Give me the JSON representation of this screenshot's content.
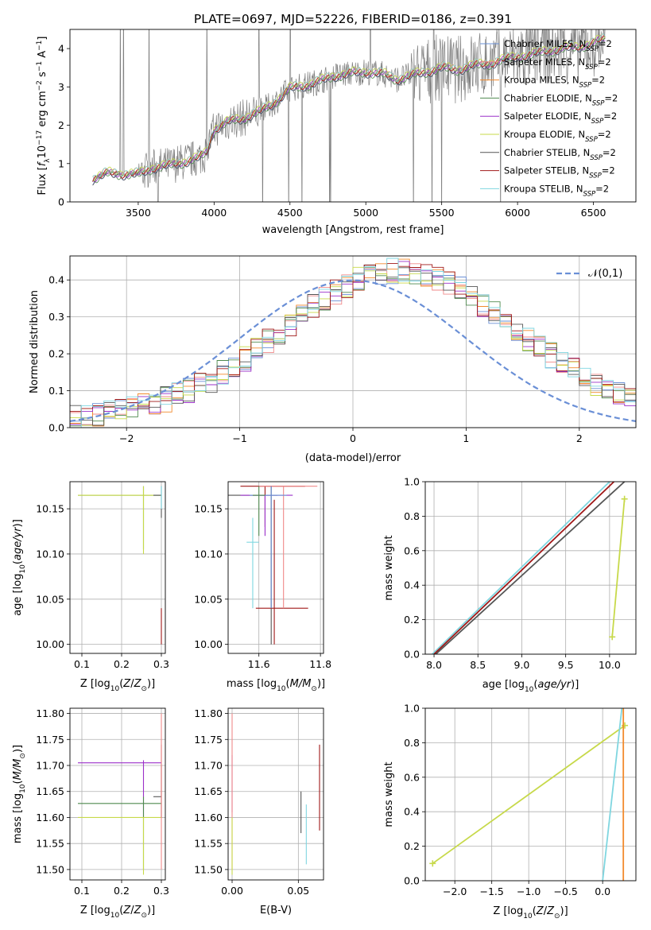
{
  "figure_title": "PLATE=0697, MJD=52226, FIBERID=0186, z=0.391",
  "chart_data": [
    {
      "id": "spectrum",
      "type": "line",
      "title": "PLATE=0697, MJD=52226, FIBERID=0186, z=0.391",
      "xlabel": "wavelength [Angstrom, rest frame]",
      "ylabel": "Flux [f_λ 10^-17 erg cm^-2 s^-1 A^-1]",
      "xlim": [
        3050,
        6780
      ],
      "ylim": [
        0,
        4.5
      ],
      "xticks": [
        3500,
        4000,
        4500,
        5000,
        5500,
        6000,
        6500
      ],
      "yticks": [
        0,
        1,
        2,
        3,
        4
      ],
      "legend_position": "upper-right",
      "series": [
        {
          "name": "Chabrier MILES, N_SSP=2",
          "color": "#6a8fd6"
        },
        {
          "name": "Salpeter MILES, N_SSP=2",
          "color": "#f08a8a"
        },
        {
          "name": "Kroupa MILES, N_SSP=2",
          "color": "#f28a2c"
        },
        {
          "name": "Chabrier ELODIE, N_SSP=2",
          "color": "#4f8a4f"
        },
        {
          "name": "Salpeter ELODIE, N_SSP=2",
          "color": "#9b30c9"
        },
        {
          "name": "Kroupa ELODIE, N_SSP=2",
          "color": "#c7d94a"
        },
        {
          "name": "Chabrier STELIB, N_SSP=2",
          "color": "#555555"
        },
        {
          "name": "Salpeter STELIB, N_SSP=2",
          "color": "#a01818"
        },
        {
          "name": "Kroupa STELIB, N_SSP=2",
          "color": "#7fd6e0"
        }
      ],
      "data_color": "#808080",
      "model_shape": {
        "x": [
          3200,
          3300,
          3500,
          3600,
          3700,
          3800,
          3900,
          3950,
          4000,
          4100,
          4200,
          4300,
          4400,
          4500,
          4600,
          4700,
          4800,
          4900,
          5000,
          5100,
          5200,
          5300,
          5400,
          5500,
          5600,
          5700,
          5800,
          5900,
          6000,
          6100,
          6200,
          6300,
          6400,
          6500,
          6580
        ],
        "y": [
          0.6,
          0.75,
          0.72,
          0.9,
          0.95,
          1.05,
          1.15,
          1.3,
          1.9,
          2.1,
          2.2,
          2.35,
          2.6,
          2.95,
          3.05,
          3.15,
          3.3,
          3.35,
          3.4,
          3.35,
          3.2,
          3.3,
          3.4,
          3.5,
          3.45,
          3.55,
          3.6,
          3.7,
          3.8,
          3.85,
          3.95,
          4.0,
          4.05,
          4.15,
          4.25
        ]
      }
    },
    {
      "id": "residuals",
      "type": "line",
      "xlabel": "(data-model)/error",
      "ylabel": "Normed distribution",
      "xlim": [
        -2.5,
        2.5
      ],
      "ylim": [
        0,
        0.465
      ],
      "xticks": [
        -2,
        -1,
        0,
        1,
        2
      ],
      "yticks": [
        0.0,
        0.1,
        0.2,
        0.3,
        0.4
      ],
      "legend": [
        {
          "name": "𝒩(0,1)",
          "color": "#6a8fd6",
          "style": "dashed"
        }
      ],
      "gaussian": {
        "mean": 0,
        "sigma": 1
      },
      "histogram_bins": {
        "start": -2.5,
        "width": 0.1,
        "count": 50
      },
      "histogram_shape": {
        "mean": 0.42,
        "sigma": 1.02,
        "peak": 0.4
      }
    },
    {
      "id": "age-vs-Z",
      "type": "scatter",
      "xlabel": "Z [log10(Z/Z_sun)]",
      "ylabel": "age  [log10(age/yr)]",
      "xlim": [
        0.07,
        0.31
      ],
      "ylim": [
        9.99,
        10.18
      ],
      "xticks": [
        0.1,
        0.2,
        0.3
      ],
      "yticks": [
        10.0,
        10.05,
        10.1,
        10.15
      ],
      "points": [
        {
          "x": 0.255,
          "y": 10.165,
          "x0": 0.09,
          "x1": 0.3,
          "y0": 10.105,
          "y1": 10.175,
          "color": "#4f8a4f"
        },
        {
          "x": 0.255,
          "y": 10.165,
          "x0": 0.09,
          "x1": 0.3,
          "y0": 10.1,
          "y1": 10.175,
          "color": "#c7d94a"
        },
        {
          "x": 0.3,
          "y": 10.165,
          "x0": 0.28,
          "x1": 0.3,
          "y0": 10.14,
          "y1": 10.175,
          "color": "#555555"
        },
        {
          "x": 0.3,
          "y": 10.02,
          "x0": 0.3,
          "x1": 0.3,
          "y0": 10.0,
          "y1": 10.04,
          "color": "#a01818"
        },
        {
          "x": 0.3,
          "y": 10.16,
          "x0": 0.3,
          "x1": 0.3,
          "y0": 10.15,
          "y1": 10.175,
          "color": "#7fd6e0"
        }
      ]
    },
    {
      "id": "age-vs-mass",
      "type": "scatter",
      "xlabel": "mass [log10(M/M_sun)]",
      "ylabel": "",
      "xlim": [
        11.5,
        11.81
      ],
      "ylim": [
        9.99,
        10.18
      ],
      "xticks": [
        11.6,
        11.8
      ],
      "yticks": [
        10.0,
        10.05,
        10.1,
        10.15
      ],
      "points": [
        {
          "x": 11.64,
          "y": 10.165,
          "x0": 11.5,
          "x1": 11.66,
          "y0": 10.0,
          "y1": 10.175,
          "color": "#555555"
        },
        {
          "x": 11.62,
          "y": 10.175,
          "x0": 11.54,
          "x1": 11.75,
          "y0": 10.13,
          "y1": 10.175,
          "color": "#a01818"
        },
        {
          "x": 11.65,
          "y": 10.04,
          "x0": 11.59,
          "x1": 11.76,
          "y0": 10.0,
          "y1": 10.16,
          "color": "#a01818"
        },
        {
          "x": 11.62,
          "y": 10.165,
          "x0": 11.54,
          "x1": 11.71,
          "y0": 10.12,
          "y1": 10.165,
          "color": "#9b30c9"
        },
        {
          "x": 11.68,
          "y": 10.175,
          "x0": 11.6,
          "x1": 11.79,
          "y0": 10.04,
          "y1": 10.175,
          "color": "#f08a8a"
        },
        {
          "x": 11.64,
          "y": 10.165,
          "x0": 11.57,
          "x1": 11.69,
          "y0": 10.04,
          "y1": 10.175,
          "color": "#6a8fd6"
        },
        {
          "x": 11.58,
          "y": 10.113,
          "x0": 11.56,
          "x1": 11.6,
          "y0": 10.04,
          "y1": 10.14,
          "color": "#7fd6e0"
        },
        {
          "x": 11.6,
          "y": 10.165,
          "x0": 11.58,
          "x1": 11.62,
          "y0": 10.12,
          "y1": 10.175,
          "color": "#4f8a4f"
        }
      ]
    },
    {
      "id": "massweight-vs-age",
      "type": "line",
      "xlabel": "age  [log10(age/yr)]",
      "ylabel": "mass weight",
      "xlim": [
        7.9,
        10.3
      ],
      "ylim": [
        0,
        1.0
      ],
      "xticks": [
        8.0,
        8.5,
        9.0,
        9.5,
        10.0
      ],
      "yticks": [
        0.0,
        0.2,
        0.4,
        0.6,
        0.8,
        1.0
      ],
      "series": [
        {
          "x": [
            7.98,
            10.0
          ],
          "y": [
            0,
            1.0
          ],
          "color": "#7fd6e0"
        },
        {
          "x": [
            8.0,
            10.05
          ],
          "y": [
            0,
            1.0
          ],
          "color": "#a01818"
        },
        {
          "x": [
            8.02,
            10.17
          ],
          "y": [
            0,
            1.0
          ],
          "color": "#555555"
        },
        {
          "x": [
            10.03,
            10.17
          ],
          "y": [
            0.1,
            0.9
          ],
          "color": "#c7d94a",
          "marker": "+"
        }
      ]
    },
    {
      "id": "mass-vs-Z",
      "type": "scatter",
      "xlabel": "Z [log10(Z/Z_sun)]",
      "ylabel": "mass [log10(M/M_sun)]",
      "xlim": [
        0.07,
        0.31
      ],
      "ylim": [
        11.48,
        11.81
      ],
      "xticks": [
        0.1,
        0.2,
        0.3
      ],
      "yticks": [
        11.5,
        11.55,
        11.6,
        11.65,
        11.7,
        11.75,
        11.8
      ],
      "points": [
        {
          "x": 0.255,
          "y": 11.705,
          "x0": 0.09,
          "x1": 0.3,
          "y0": 11.6,
          "y1": 11.71,
          "color": "#9b30c9"
        },
        {
          "x": 0.255,
          "y": 11.627,
          "x0": 0.09,
          "x1": 0.3,
          "y0": 11.5,
          "y1": 11.64,
          "color": "#4f8a4f"
        },
        {
          "x": 0.255,
          "y": 11.6,
          "x0": 0.09,
          "x1": 0.3,
          "y0": 11.49,
          "y1": 11.6,
          "color": "#c7d94a"
        },
        {
          "x": 0.3,
          "y": 11.64,
          "x0": 0.28,
          "x1": 0.3,
          "y0": 11.6,
          "y1": 11.7,
          "color": "#555555"
        },
        {
          "x": 0.3,
          "y": 11.7,
          "x0": 0.3,
          "x1": 0.3,
          "y0": 11.6,
          "y1": 11.74,
          "color": "#a01818"
        },
        {
          "x": 0.3,
          "y": 11.7,
          "x0": 0.3,
          "x1": 0.3,
          "y0": 11.5,
          "y1": 11.8,
          "color": "#f08a8a"
        }
      ]
    },
    {
      "id": "mass-vs-EBV",
      "type": "scatter",
      "xlabel": "E(B-V)",
      "ylabel": "",
      "xlim": [
        -0.003,
        0.069
      ],
      "ylim": [
        11.48,
        11.81
      ],
      "xticks": [
        0.0,
        0.05
      ],
      "yticks": [
        11.5,
        11.55,
        11.6,
        11.65,
        11.7,
        11.75,
        11.8
      ],
      "points": [
        {
          "x": 0.0,
          "y": 11.7,
          "x0": 0.0,
          "x1": 0.0,
          "y0": 11.61,
          "y1": 11.72,
          "color": "#9b30c9"
        },
        {
          "x": 0.0,
          "y": 11.7,
          "x0": 0.0,
          "x1": 0.0,
          "y0": 11.5,
          "y1": 11.8,
          "color": "#f08a8a"
        },
        {
          "x": 0.0,
          "y": 11.55,
          "x0": 0.0,
          "x1": 0.0,
          "y0": 11.49,
          "y1": 11.6,
          "color": "#c7d94a"
        },
        {
          "x": 0.052,
          "y": 11.61,
          "x0": 0.052,
          "x1": 0.052,
          "y0": 11.57,
          "y1": 11.65,
          "color": "#555555"
        },
        {
          "x": 0.056,
          "y": 11.56,
          "x0": 0.056,
          "x1": 0.056,
          "y0": 11.51,
          "y1": 11.625,
          "color": "#7fd6e0"
        },
        {
          "x": 0.066,
          "y": 11.65,
          "x0": 0.066,
          "x1": 0.066,
          "y0": 11.575,
          "y1": 11.74,
          "color": "#a01818"
        }
      ]
    },
    {
      "id": "massweight-vs-Z",
      "type": "line",
      "xlabel": "Z [log10(Z/Z_sun)]",
      "ylabel": "mass weight",
      "xlim": [
        -2.4,
        0.45
      ],
      "ylim": [
        0,
        1.0
      ],
      "xticks": [
        -2.0,
        -1.5,
        -1.0,
        -0.5,
        0.0
      ],
      "yticks": [
        0.0,
        0.2,
        0.4,
        0.6,
        0.8,
        1.0
      ],
      "series": [
        {
          "x": [
            -2.3,
            0.3
          ],
          "y": [
            0.1,
            0.9
          ],
          "color": "#c7d94a",
          "marker": "+"
        },
        {
          "x": [
            0.0,
            0.26
          ],
          "y": [
            0,
            1.0
          ],
          "color": "#7fd6e0"
        },
        {
          "x": [
            0.28,
            0.28
          ],
          "y": [
            0,
            1.0
          ],
          "color": "#f28a2c"
        }
      ]
    }
  ]
}
